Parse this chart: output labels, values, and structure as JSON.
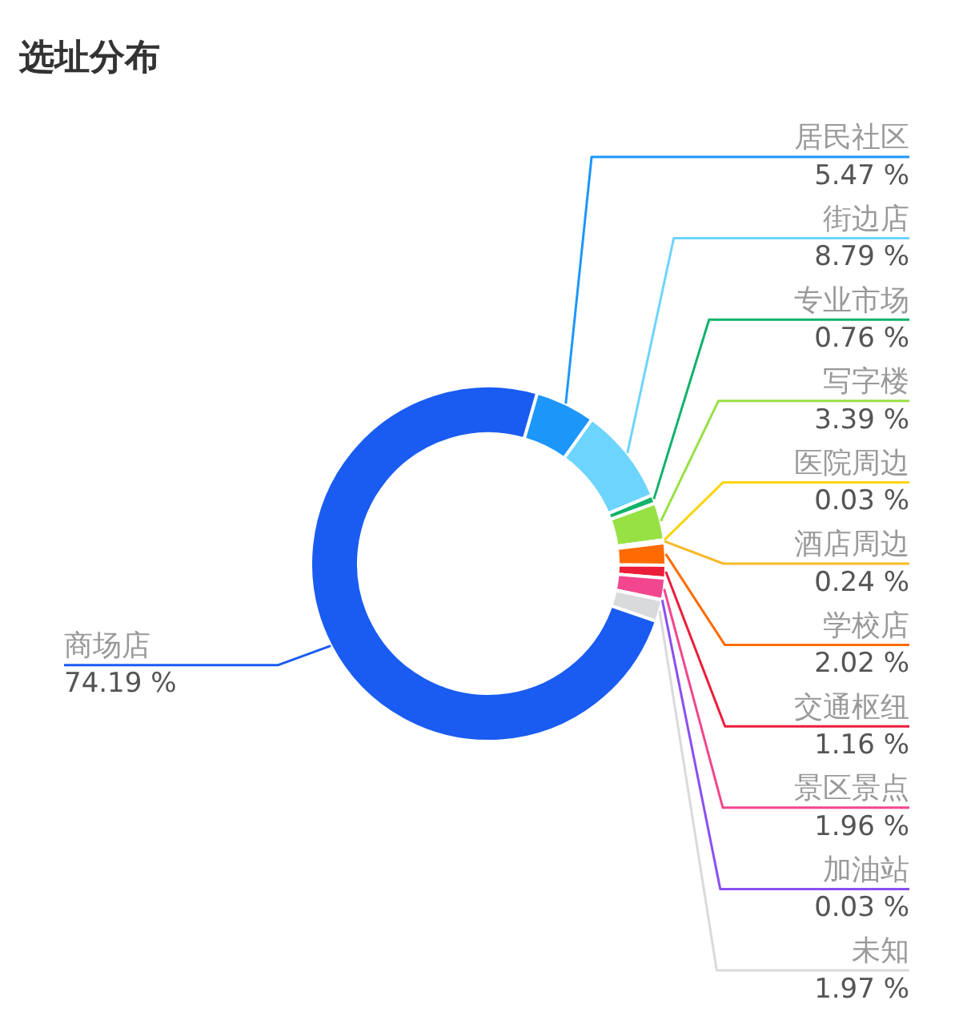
{
  "chart_data": {
    "type": "donut",
    "title": "选址分布",
    "categories": [
      "居民社区",
      "街边店",
      "专业市场",
      "写字楼",
      "医院周边",
      "酒店周边",
      "学校店",
      "交通枢纽",
      "景区景点",
      "加油站",
      "未知",
      "商场店"
    ],
    "values": [
      5.47,
      8.79,
      0.76,
      3.39,
      0.03,
      0.24,
      2.02,
      1.16,
      1.96,
      0.03,
      1.97,
      74.19
    ],
    "colors": [
      "#1d96fa",
      "#6dd4fd",
      "#12b26a",
      "#97e145",
      "#fcd40c",
      "#f7b928",
      "#ff6b00",
      "#ec1d3a",
      "#f2468e",
      "#8a4ff0",
      "#d8dadb",
      "#1a5cf2"
    ],
    "value_labels": [
      "5.47 %",
      "8.79 %",
      "0.76 %",
      "3.39 %",
      "0.03 %",
      "0.24 %",
      "2.02 %",
      "1.16 %",
      "1.96 %",
      "0.03 %",
      "1.97 %",
      "74.19 %"
    ]
  }
}
